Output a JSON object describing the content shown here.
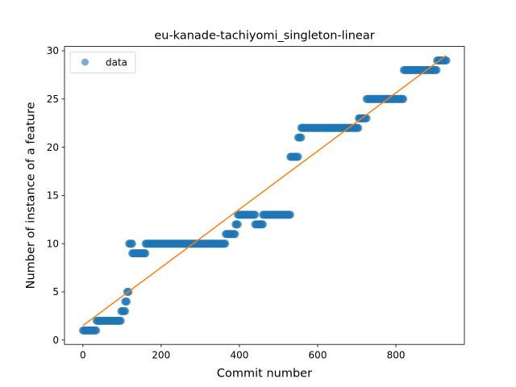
{
  "chart_data": {
    "type": "scatter",
    "title": "eu-kanade-tachiyomi_singleton-linear",
    "xlabel": "Commit number",
    "ylabel": "Number of instance of a feature",
    "xlim": [
      -47,
      975
    ],
    "ylim": [
      -0.45,
      30.45
    ],
    "xticks": [
      0,
      200,
      400,
      600,
      800
    ],
    "yticks": [
      0,
      5,
      10,
      15,
      20,
      25,
      30
    ],
    "grid": false,
    "legend": {
      "placement": "top-left",
      "entries": [
        "data"
      ]
    },
    "colors": {
      "data": "#1f77b4",
      "fit": "#ff7f0e"
    },
    "series": [
      {
        "name": "data",
        "kind": "scatter",
        "segments": [
          {
            "x": [
              0,
              35
            ],
            "y": 1
          },
          {
            "x": [
              35,
              98
            ],
            "y": 2
          },
          {
            "x": [
              98,
              108
            ],
            "y": 3
          },
          {
            "x": [
              108,
              113
            ],
            "y": 4
          },
          {
            "x": [
              113,
              118
            ],
            "y": 5
          },
          {
            "x": [
              118,
              126
            ],
            "y": 10
          },
          {
            "x": [
              126,
              160
            ],
            "y": 9
          },
          {
            "x": [
              160,
              365
            ],
            "y": 10
          },
          {
            "x": [
              365,
              390
            ],
            "y": 11
          },
          {
            "x": [
              390,
              396
            ],
            "y": 12
          },
          {
            "x": [
              396,
              440
            ],
            "y": 13
          },
          {
            "x": [
              440,
              460
            ],
            "y": 12
          },
          {
            "x": [
              460,
              530
            ],
            "y": 13
          },
          {
            "x": [
              530,
              550
            ],
            "y": 19
          },
          {
            "x": [
              550,
              558
            ],
            "y": 21
          },
          {
            "x": [
              558,
              705
            ],
            "y": 22
          },
          {
            "x": [
              705,
              725
            ],
            "y": 23
          },
          {
            "x": [
              725,
              820
            ],
            "y": 25
          },
          {
            "x": [
              820,
              905
            ],
            "y": 28
          },
          {
            "x": [
              905,
              930
            ],
            "y": 29
          }
        ]
      },
      {
        "name": "fit",
        "kind": "line",
        "x": [
          0,
          928
        ],
        "y": [
          1.5,
          29.5
        ]
      }
    ]
  }
}
